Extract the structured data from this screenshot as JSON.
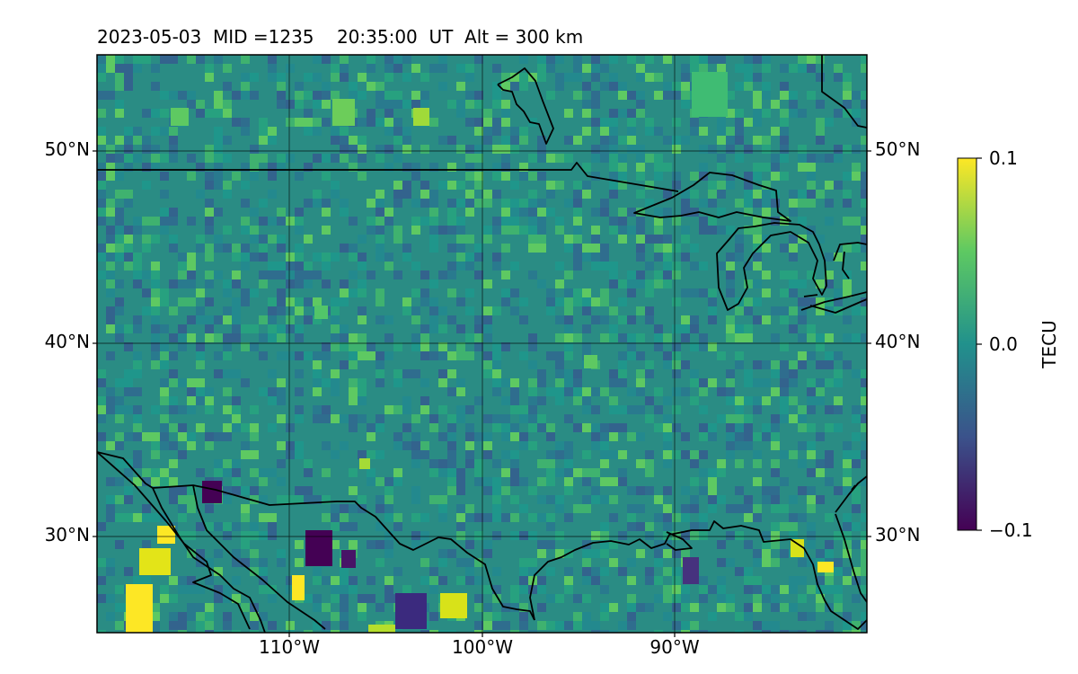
{
  "header": {
    "title": "2023-05-03  MID =1235    20:35:00  UT  Alt = 300 km"
  },
  "map": {
    "extent": {
      "lon_min": -120,
      "lon_max": -80,
      "lat_min": 25,
      "lat_max": 55
    },
    "projection": "plate-carree",
    "grid": true,
    "lat_labels": [
      "50°N",
      "40°N",
      "30°N"
    ],
    "lon_labels": [
      "110°W",
      "100°W",
      "90°W"
    ],
    "colormap": "viridis"
  },
  "colorbar": {
    "label": "TECU",
    "ticks": [
      "0.1",
      "0.0",
      "−0.1"
    ],
    "range": [
      -0.1,
      0.1
    ]
  },
  "colors": {
    "background": "#ffffff",
    "coastline": "#000000",
    "grid": "#000000"
  }
}
